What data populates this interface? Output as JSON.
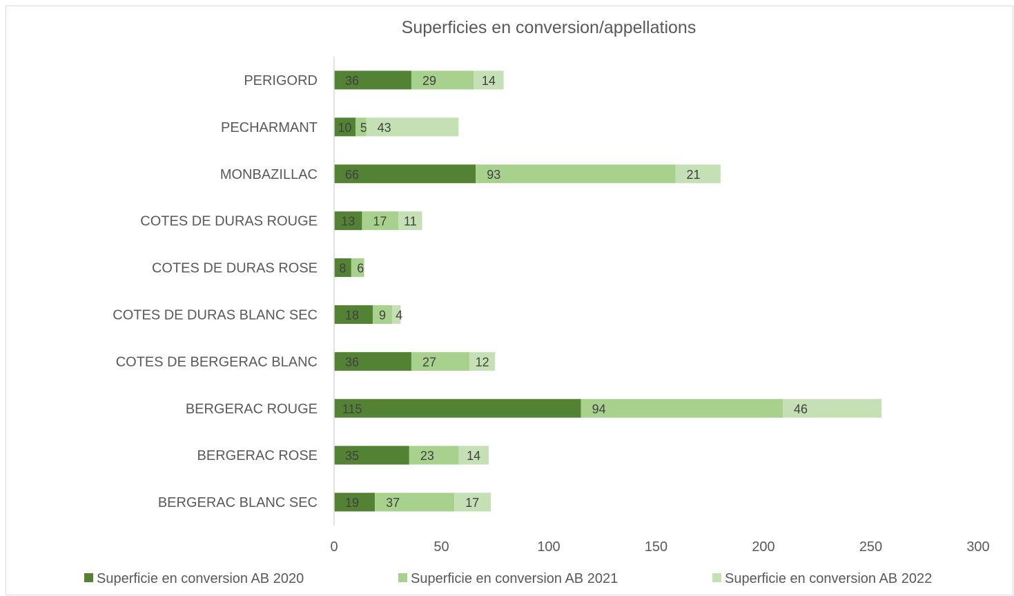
{
  "chart_data": {
    "type": "bar",
    "orientation": "horizontal",
    "stacked": true,
    "title": "Superficies en conversion/appellations",
    "categories": [
      "PERIGORD",
      "PECHARMANT",
      "MONBAZILLAC",
      "COTES DE DURAS ROUGE",
      "COTES DE DURAS ROSE",
      "COTES DE DURAS BLANC SEC",
      "COTES DE BERGERAC BLANC",
      "BERGERAC ROUGE",
      "BERGERAC ROSE",
      "BERGERAC BLANC SEC"
    ],
    "series": [
      {
        "name": "Superficie en conversion AB  2020",
        "color": "#548235",
        "values": [
          36,
          10,
          66,
          13,
          8,
          18,
          36,
          115,
          35,
          19
        ]
      },
      {
        "name": "Superficie en conversion AB  2021",
        "color": "#a9d18e",
        "values": [
          29,
          5,
          93,
          17,
          6,
          9,
          27,
          94,
          23,
          37
        ]
      },
      {
        "name": "Superficie en conversion AB  2022",
        "color": "#c5e0b4",
        "values": [
          14,
          43,
          21,
          11,
          null,
          4,
          12,
          46,
          14,
          17
        ]
      }
    ],
    "xlim": [
      0,
      300
    ],
    "xticks": [
      0,
      50,
      100,
      150,
      200,
      250,
      300
    ],
    "grid": false,
    "legend_position": "bottom"
  }
}
